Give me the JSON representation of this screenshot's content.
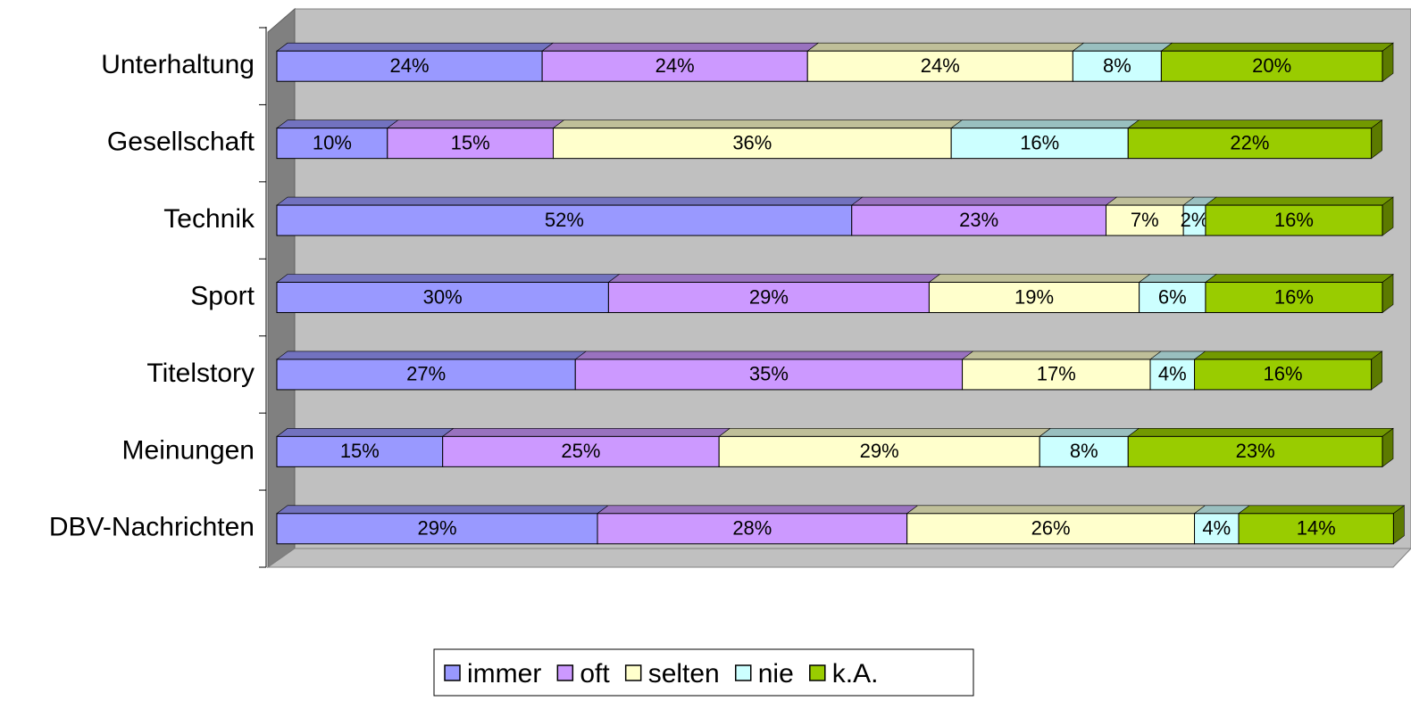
{
  "chart_data": {
    "type": "bar",
    "orientation": "horizontal",
    "stacked": true,
    "categories": [
      "Unterhaltung",
      "Gesellschaft",
      "Technik",
      "Sport",
      "Titelstory",
      "Meinungen",
      "DBV-Nachrichten"
    ],
    "xlim": [
      0,
      100
    ],
    "series": [
      {
        "name": "immer",
        "color": "#9999ff",
        "values": [
          24,
          10,
          52,
          30,
          27,
          15,
          29
        ],
        "value_labels": [
          "24%",
          "10%",
          "52%",
          "30%",
          "27%",
          "15%",
          "29%"
        ]
      },
      {
        "name": "oft",
        "color": "#cc99ff",
        "values": [
          24,
          15,
          23,
          29,
          35,
          25,
          28
        ],
        "value_labels": [
          "24%",
          "15%",
          "23%",
          "29%",
          "35%",
          "25%",
          "28%"
        ]
      },
      {
        "name": "selten",
        "color": "#ffffcc",
        "values": [
          24,
          36,
          7,
          19,
          17,
          29,
          26
        ],
        "value_labels": [
          "24%",
          "36%",
          "7%",
          "19%",
          "17%",
          "29%",
          "26%"
        ]
      },
      {
        "name": "nie",
        "color": "#ccffff",
        "values": [
          8,
          16,
          2,
          6,
          4,
          8,
          4
        ],
        "value_labels": [
          "8%",
          "16%",
          "2%",
          "6%",
          "4%",
          "8%",
          "4%"
        ]
      },
      {
        "name": "k.A.",
        "color": "#99cc00",
        "values": [
          20,
          22,
          16,
          16,
          16,
          23,
          14
        ],
        "value_labels": [
          "20%",
          "22%",
          "16%",
          "16%",
          "16%",
          "23%",
          "14%"
        ]
      }
    ]
  }
}
